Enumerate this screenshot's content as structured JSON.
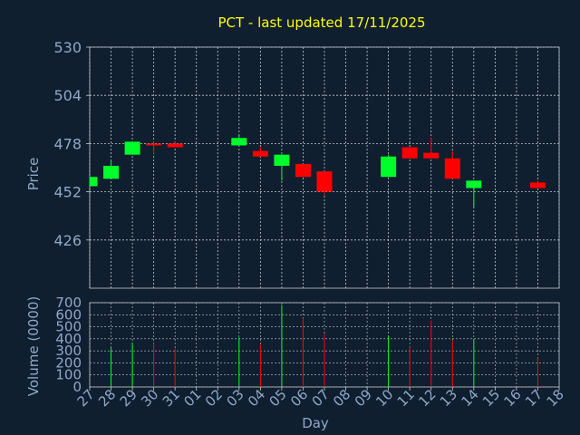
{
  "chart_data": [
    {
      "type": "candlestick",
      "title": "PCT - last updated 17/11/2025",
      "xlabel": "",
      "ylabel": "Price",
      "ylim": [
        400,
        530
      ],
      "yticks": [
        426,
        452,
        478,
        504,
        530
      ],
      "categories": [
        "27",
        "28",
        "29",
        "30",
        "31",
        "01",
        "02",
        "03",
        "04",
        "05",
        "06",
        "07",
        "08",
        "09",
        "10",
        "11",
        "12",
        "13",
        "14",
        "15",
        "16",
        "17",
        "18"
      ],
      "candles": [
        {
          "x": "27",
          "open": 455,
          "high": 460,
          "low": 455,
          "close": 460
        },
        {
          "x": "28",
          "open": 459,
          "high": 469,
          "low": 459,
          "close": 466
        },
        {
          "x": "29",
          "open": 472,
          "high": 479,
          "low": 472,
          "close": 479
        },
        {
          "x": "30",
          "open": 478,
          "high": 479,
          "low": 472,
          "close": 477
        },
        {
          "x": "31",
          "open": 478,
          "high": 479,
          "low": 476,
          "close": 476
        },
        {
          "x": "03",
          "open": 477,
          "high": 483,
          "low": 477,
          "close": 481
        },
        {
          "x": "04",
          "open": 474,
          "high": 476,
          "low": 471,
          "close": 471
        },
        {
          "x": "05",
          "open": 466,
          "high": 472,
          "low": 458,
          "close": 472
        },
        {
          "x": "06",
          "open": 467,
          "high": 467,
          "low": 460,
          "close": 460
        },
        {
          "x": "07",
          "open": 463,
          "high": 463,
          "low": 450,
          "close": 452
        },
        {
          "x": "10",
          "open": 460,
          "high": 472,
          "low": 460,
          "close": 471
        },
        {
          "x": "11",
          "open": 476,
          "high": 476,
          "low": 470,
          "close": 470
        },
        {
          "x": "12",
          "open": 473,
          "high": 481,
          "low": 470,
          "close": 470
        },
        {
          "x": "13",
          "open": 470,
          "high": 474,
          "low": 459,
          "close": 459
        },
        {
          "x": "14",
          "open": 454,
          "high": 458,
          "low": 444,
          "close": 458
        },
        {
          "x": "17",
          "open": 457,
          "high": 458,
          "low": 454,
          "close": 454
        }
      ],
      "colors": {
        "up": "#00ff2a",
        "down": "#ff0000"
      }
    },
    {
      "type": "bar",
      "xlabel": "Day",
      "ylabel": "Volume (0000)",
      "ylim": [
        0,
        700
      ],
      "yticks": [
        0,
        100,
        200,
        300,
        400,
        500,
        600,
        700
      ],
      "categories": [
        "27",
        "28",
        "29",
        "30",
        "31",
        "01",
        "02",
        "03",
        "04",
        "05",
        "06",
        "07",
        "08",
        "09",
        "10",
        "11",
        "12",
        "13",
        "14",
        "15",
        "16",
        "17",
        "18"
      ],
      "bars": [
        {
          "x": "28",
          "value": 330,
          "dir": "up"
        },
        {
          "x": "29",
          "value": 370,
          "dir": "up"
        },
        {
          "x": "30",
          "value": 360,
          "dir": "down"
        },
        {
          "x": "31",
          "value": 320,
          "dir": "down"
        },
        {
          "x": "03",
          "value": 410,
          "dir": "up"
        },
        {
          "x": "04",
          "value": 350,
          "dir": "down"
        },
        {
          "x": "05",
          "value": 680,
          "dir": "up"
        },
        {
          "x": "06",
          "value": 570,
          "dir": "down"
        },
        {
          "x": "07",
          "value": 440,
          "dir": "down"
        },
        {
          "x": "10",
          "value": 420,
          "dir": "up"
        },
        {
          "x": "11",
          "value": 330,
          "dir": "down"
        },
        {
          "x": "12",
          "value": 550,
          "dir": "down"
        },
        {
          "x": "13",
          "value": 390,
          "dir": "down"
        },
        {
          "x": "14",
          "value": 400,
          "dir": "up"
        },
        {
          "x": "17",
          "value": 240,
          "dir": "down"
        }
      ]
    }
  ],
  "style": {
    "background": "#0f1f30",
    "title_color": "#ffff00",
    "axis_text_color": "#8fa8c8",
    "grid_color": "#c8c8c8"
  }
}
